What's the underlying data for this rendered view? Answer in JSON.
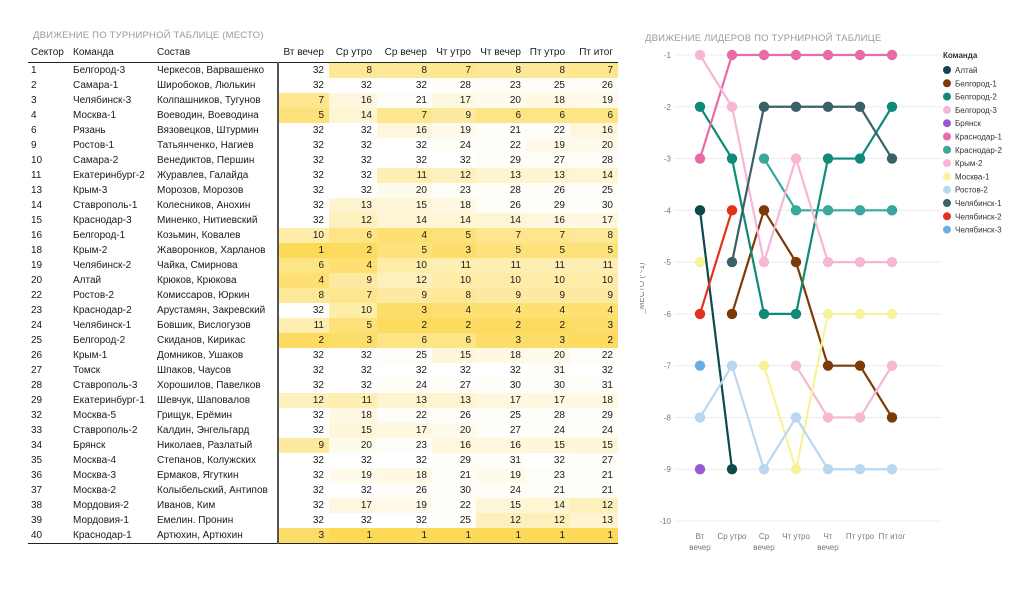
{
  "table_title": "ДВИЖЕНИЕ ПО ТУРНИРНОЙ ТАБЛИЦЕ (МЕСТО)",
  "chart_title": "ДВИЖЕНИЕ ЛИДЕРОВ ПО ТУРНИРНОЙ ТАБЛИЦЕ",
  "columns": [
    "Сектор",
    "Команда",
    "Состав",
    "Вт вечер",
    "Ср утро",
    "Ср вечер",
    "Чт утро",
    "Чт вечер",
    "Пт утро",
    "Пт итог"
  ],
  "rows": [
    [
      "1",
      "Белгород-3",
      "Черкесов, Варвашенко",
      "32",
      "8",
      "8",
      "7",
      "8",
      "8",
      "7"
    ],
    [
      "2",
      "Самара-1",
      "Широбоков, Люлькин",
      "32",
      "32",
      "32",
      "28",
      "23",
      "25",
      "26"
    ],
    [
      "3",
      "Челябинск-3",
      "Колпашников, Тугунов",
      "7",
      "16",
      "21",
      "17",
      "20",
      "18",
      "19"
    ],
    [
      "4",
      "Москва-1",
      "Воеводин, Воеводина",
      "5",
      "14",
      "7",
      "9",
      "6",
      "6",
      "6"
    ],
    [
      "6",
      "Рязань",
      "Вязовецков, Штурмин",
      "32",
      "32",
      "16",
      "19",
      "21",
      "22",
      "16"
    ],
    [
      "9",
      "Ростов-1",
      "Татьянченко, Нагиев",
      "32",
      "32",
      "32",
      "24",
      "22",
      "19",
      "20"
    ],
    [
      "10",
      "Самара-2",
      "Венедиктов, Першин",
      "32",
      "32",
      "32",
      "32",
      "29",
      "27",
      "28"
    ],
    [
      "11",
      "Екатеринбург-2",
      "Журавлев, Галайда",
      "32",
      "32",
      "11",
      "12",
      "13",
      "13",
      "14"
    ],
    [
      "13",
      "Крым-3",
      "Морозов, Морозов",
      "32",
      "32",
      "20",
      "23",
      "28",
      "26",
      "25"
    ],
    [
      "14",
      "Ставрополь-1",
      "Колесников, Анохин",
      "32",
      "13",
      "15",
      "18",
      "26",
      "29",
      "30"
    ],
    [
      "15",
      "Краснодар-3",
      "Миненко, Нитиевский",
      "32",
      "12",
      "14",
      "14",
      "14",
      "16",
      "17"
    ],
    [
      "16",
      "Белгород-1",
      "Козьмин, Ковалев",
      "10",
      "6",
      "4",
      "5",
      "7",
      "7",
      "8"
    ],
    [
      "18",
      "Крым-2",
      "Жаворонков, Харланов",
      "1",
      "2",
      "5",
      "3",
      "5",
      "5",
      "5"
    ],
    [
      "19",
      "Челябинск-2",
      "Чайка, Смирнова",
      "6",
      "4",
      "10",
      "11",
      "11",
      "11",
      "11"
    ],
    [
      "20",
      "Алтай",
      "Крюков, Крюкова",
      "4",
      "9",
      "12",
      "10",
      "10",
      "10",
      "10"
    ],
    [
      "22",
      "Ростов-2",
      "Комиссаров, Юркин",
      "8",
      "7",
      "9",
      "8",
      "9",
      "9",
      "9"
    ],
    [
      "23",
      "Краснодар-2",
      "Арустамян, Закревский",
      "32",
      "10",
      "3",
      "4",
      "4",
      "4",
      "4"
    ],
    [
      "24",
      "Челябинск-1",
      "Бовшик, Вислогузов",
      "11",
      "5",
      "2",
      "2",
      "2",
      "2",
      "3"
    ],
    [
      "25",
      "Белгород-2",
      "Скиданов, Кирикас",
      "2",
      "3",
      "6",
      "6",
      "3",
      "3",
      "2"
    ],
    [
      "26",
      "Крым-1",
      "Домников, Ушаков",
      "32",
      "32",
      "25",
      "15",
      "18",
      "20",
      "22"
    ],
    [
      "27",
      "Томск",
      "Шпаков, Чаусов",
      "32",
      "32",
      "32",
      "32",
      "32",
      "31",
      "32"
    ],
    [
      "28",
      "Ставрополь-3",
      "Хорошилов, Павелков",
      "32",
      "32",
      "24",
      "27",
      "30",
      "30",
      "31"
    ],
    [
      "29",
      "Екатеринбург-1",
      "Шевчук, Шаповалов",
      "12",
      "11",
      "13",
      "13",
      "17",
      "17",
      "18"
    ],
    [
      "32",
      "Москва-5",
      "Грищук, Ерёмин",
      "32",
      "18",
      "22",
      "26",
      "25",
      "28",
      "29"
    ],
    [
      "33",
      "Ставрополь-2",
      "Калдин, Энгельгард",
      "32",
      "15",
      "17",
      "20",
      "27",
      "24",
      "24"
    ],
    [
      "34",
      "Брянск",
      "Николаев, Разлатый",
      "9",
      "20",
      "23",
      "16",
      "16",
      "15",
      "15"
    ],
    [
      "35",
      "Москва-4",
      "Степанов, Колужских",
      "32",
      "32",
      "32",
      "29",
      "31",
      "32",
      "27"
    ],
    [
      "36",
      "Москва-3",
      "Ермаков, Ягуткин",
      "32",
      "19",
      "18",
      "21",
      "19",
      "23",
      "21"
    ],
    [
      "37",
      "Москва-2",
      "Колыбельский, Антипов",
      "32",
      "32",
      "26",
      "30",
      "24",
      "21",
      "21"
    ],
    [
      "38",
      "Мордовия-2",
      "Иванов, Ким",
      "32",
      "17",
      "19",
      "22",
      "15",
      "14",
      "12"
    ],
    [
      "39",
      "Мордовия-1",
      "Емелин. Пронин",
      "32",
      "32",
      "32",
      "25",
      "12",
      "12",
      "13"
    ],
    [
      "40",
      "Краснодар-1",
      "Артюхин, Артюхин",
      "3",
      "1",
      "1",
      "1",
      "1",
      "1",
      "1"
    ]
  ],
  "chart_data": {
    "type": "line",
    "categories": [
      "Вт вечер",
      "Ср утро",
      "Ср вечер",
      "Чт утро",
      "Чт вечер",
      "Пт утро",
      "Пт итог"
    ],
    "category_lines": [
      [
        "Вт",
        "вечер"
      ],
      [
        "Ср утро"
      ],
      [
        "Ср",
        "вечер"
      ],
      [
        "Чт утро"
      ],
      [
        "Чт",
        "вечер"
      ],
      [
        "Пт утро"
      ],
      [
        "Пт итог"
      ]
    ],
    "ylabel": "_МЕСТО (^-1)",
    "ylim": [
      -10,
      -1
    ],
    "yticks": [
      -1,
      -2,
      -3,
      -4,
      -5,
      -6,
      -7,
      -8,
      -9,
      -10
    ],
    "legend_title": "Команда",
    "legend_position": "right",
    "series": [
      {
        "name": "Алтай",
        "color": "#0b4a4a",
        "values": [
          -4,
          -9,
          null,
          null,
          null,
          null,
          null
        ]
      },
      {
        "name": "Белгород-1",
        "color": "#7a3b06",
        "values": [
          null,
          -6,
          -4,
          -5,
          -7,
          -7,
          -8
        ]
      },
      {
        "name": "Белгород-2",
        "color": "#0f8a78",
        "values": [
          -2,
          -3,
          -6,
          -6,
          -3,
          -3,
          -2
        ]
      },
      {
        "name": "Белгород-3",
        "color": "#f5b7d2",
        "values": [
          null,
          null,
          null,
          -7,
          -8,
          -8,
          -7
        ]
      },
      {
        "name": "Брянск",
        "color": "#9b59d0",
        "values": [
          -9,
          null,
          null,
          null,
          null,
          null,
          null
        ]
      },
      {
        "name": "Краснодар-1",
        "color": "#e86aa7",
        "values": [
          -3,
          -1,
          -1,
          -1,
          -1,
          -1,
          -1
        ]
      },
      {
        "name": "Краснодар-2",
        "color": "#38a89d",
        "values": [
          null,
          null,
          -3,
          -4,
          -4,
          -4,
          -4
        ]
      },
      {
        "name": "Крым-2",
        "color": "#f7b6d4",
        "values": [
          -1,
          -2,
          -5,
          -3,
          -5,
          -5,
          -5
        ]
      },
      {
        "name": "Москва-1",
        "color": "#f7f39a",
        "values": [
          -5,
          null,
          -7,
          -9,
          -6,
          -6,
          -6
        ]
      },
      {
        "name": "Ростов-2",
        "color": "#b9d8f0",
        "values": [
          -8,
          -7,
          -9,
          -8,
          -9,
          -9,
          -9
        ]
      },
      {
        "name": "Челябинск-1",
        "color": "#3a6068",
        "values": [
          null,
          -5,
          -2,
          -2,
          -2,
          -2,
          -3
        ]
      },
      {
        "name": "Челябинск-2",
        "color": "#e0341e",
        "values": [
          -6,
          -4,
          null,
          null,
          null,
          null,
          null
        ]
      },
      {
        "name": "Челябинск-3",
        "color": "#6aaee8",
        "values": [
          -7,
          null,
          null,
          null,
          null,
          null,
          null
        ]
      }
    ]
  }
}
